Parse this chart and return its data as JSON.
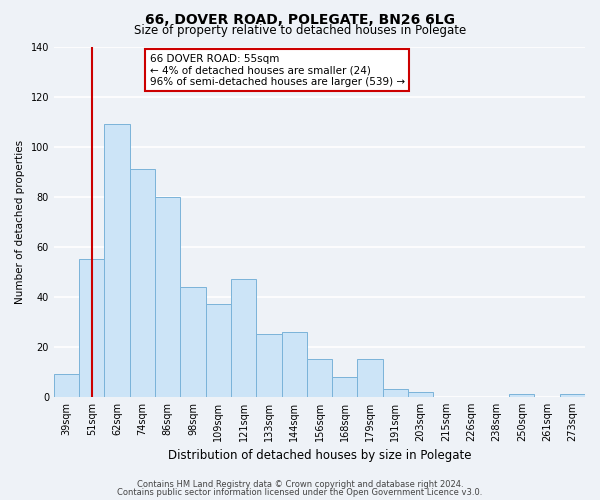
{
  "title": "66, DOVER ROAD, POLEGATE, BN26 6LG",
  "subtitle": "Size of property relative to detached houses in Polegate",
  "xlabel": "Distribution of detached houses by size in Polegate",
  "ylabel": "Number of detached properties",
  "bar_labels": [
    "39sqm",
    "51sqm",
    "62sqm",
    "74sqm",
    "86sqm",
    "98sqm",
    "109sqm",
    "121sqm",
    "133sqm",
    "144sqm",
    "156sqm",
    "168sqm",
    "179sqm",
    "191sqm",
    "203sqm",
    "215sqm",
    "226sqm",
    "238sqm",
    "250sqm",
    "261sqm",
    "273sqm"
  ],
  "bar_values": [
    9,
    55,
    109,
    91,
    80,
    44,
    37,
    47,
    25,
    26,
    15,
    8,
    15,
    3,
    2,
    0,
    0,
    0,
    1,
    0,
    1
  ],
  "bar_color": "#cce4f7",
  "bar_edge_color": "#7ab3d9",
  "vline_x_index": 1,
  "vline_color": "#cc0000",
  "ylim": [
    0,
    140
  ],
  "yticks": [
    0,
    20,
    40,
    60,
    80,
    100,
    120,
    140
  ],
  "annotation_title": "66 DOVER ROAD: 55sqm",
  "annotation_line1": "← 4% of detached houses are smaller (24)",
  "annotation_line2": "96% of semi-detached houses are larger (539) →",
  "annotation_box_facecolor": "#ffffff",
  "annotation_box_edgecolor": "#cc0000",
  "footer1": "Contains HM Land Registry data © Crown copyright and database right 2024.",
  "footer2": "Contains public sector information licensed under the Open Government Licence v3.0.",
  "fig_facecolor": "#eef2f7",
  "ax_facecolor": "#eef2f7",
  "grid_color": "#ffffff",
  "title_fontsize": 10,
  "subtitle_fontsize": 8.5,
  "xlabel_fontsize": 8.5,
  "ylabel_fontsize": 7.5,
  "tick_fontsize": 7,
  "annotation_fontsize": 7.5,
  "footer_fontsize": 6
}
